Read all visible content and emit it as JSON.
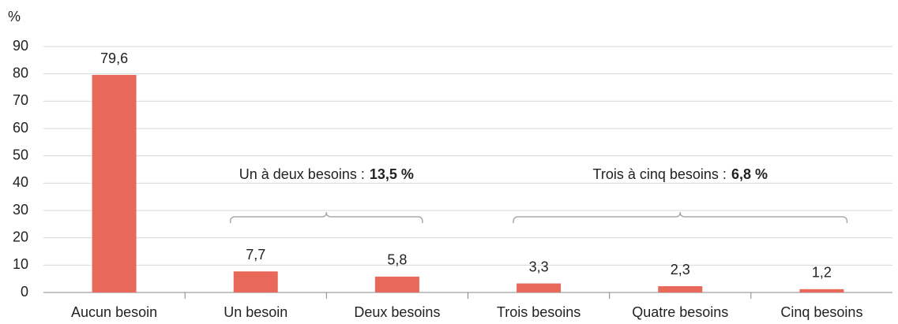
{
  "chart_data": {
    "type": "bar",
    "y_unit": "%",
    "categories": [
      "Aucun besoin",
      "Un besoin",
      "Deux besoins",
      "Trois besoins",
      "Quatre besoins",
      "Cinq besoins"
    ],
    "values": [
      79.6,
      7.7,
      5.8,
      3.3,
      2.3,
      1.2
    ],
    "value_labels": [
      "79,6",
      "7,7",
      "5,8",
      "3,3",
      "2,3",
      "1,2"
    ],
    "color": "#e8685a",
    "ylim": [
      0,
      90
    ],
    "yticks": [
      0,
      10,
      20,
      30,
      40,
      50,
      60,
      70,
      80,
      90
    ],
    "grid": true,
    "annotations": [
      {
        "text": "Un à deux besoins :",
        "value_label": "13,5 %"
      },
      {
        "text": "Trois à cinq besoins :",
        "value_label": "6,8 %"
      }
    ]
  }
}
